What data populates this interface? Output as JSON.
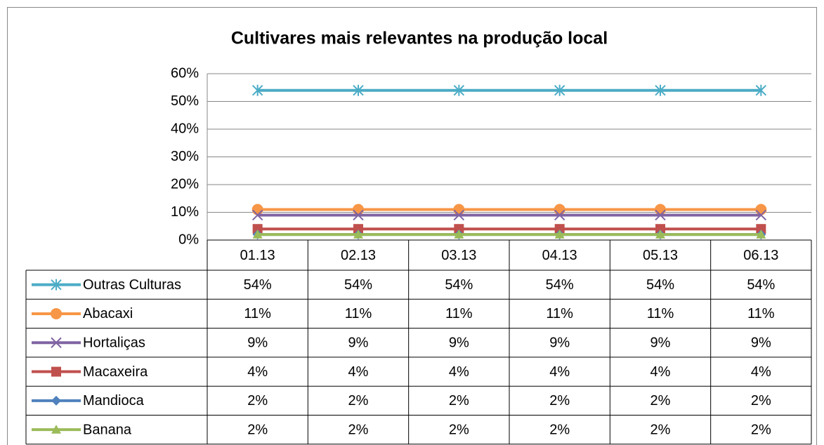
{
  "chart_data": {
    "type": "line",
    "title": "Cultivares mais relevantes na produção local",
    "categories": [
      "01.13",
      "02.13",
      "03.13",
      "04.13",
      "05.13",
      "06.13"
    ],
    "ylim": [
      0,
      60
    ],
    "yticks": [
      {
        "value": 0,
        "label": "0%"
      },
      {
        "value": 10,
        "label": "10%"
      },
      {
        "value": 20,
        "label": "20%"
      },
      {
        "value": 30,
        "label": "30%"
      },
      {
        "value": 40,
        "label": "40%"
      },
      {
        "value": 50,
        "label": "50%"
      },
      {
        "value": 60,
        "label": "60%"
      }
    ],
    "grid": true,
    "series": [
      {
        "name": "Outras Culturas",
        "color": "#4bacc6",
        "marker": "star",
        "values": [
          54,
          54,
          54,
          54,
          54,
          54
        ],
        "value_labels": [
          "54%",
          "54%",
          "54%",
          "54%",
          "54%",
          "54%"
        ]
      },
      {
        "name": "Abacaxi",
        "color": "#f79646",
        "marker": "circle",
        "values": [
          11,
          11,
          11,
          11,
          11,
          11
        ],
        "value_labels": [
          "11%",
          "11%",
          "11%",
          "11%",
          "11%",
          "11%"
        ]
      },
      {
        "name": "Hortaliças",
        "color": "#8064a2",
        "marker": "x",
        "values": [
          9,
          9,
          9,
          9,
          9,
          9
        ],
        "value_labels": [
          "9%",
          "9%",
          "9%",
          "9%",
          "9%",
          "9%"
        ]
      },
      {
        "name": "Macaxeira",
        "color": "#c0504d",
        "marker": "square",
        "values": [
          4,
          4,
          4,
          4,
          4,
          4
        ],
        "value_labels": [
          "4%",
          "4%",
          "4%",
          "4%",
          "4%",
          "4%"
        ]
      },
      {
        "name": "Mandioca",
        "color": "#4f81bd",
        "marker": "diamond",
        "values": [
          2,
          2,
          2,
          2,
          2,
          2
        ],
        "value_labels": [
          "2%",
          "2%",
          "2%",
          "2%",
          "2%",
          "2%"
        ]
      },
      {
        "name": "Banana",
        "color": "#9bbb59",
        "marker": "triangle",
        "values": [
          2,
          2,
          2,
          2,
          2,
          2
        ],
        "value_labels": [
          "2%",
          "2%",
          "2%",
          "2%",
          "2%",
          "2%"
        ]
      }
    ]
  }
}
